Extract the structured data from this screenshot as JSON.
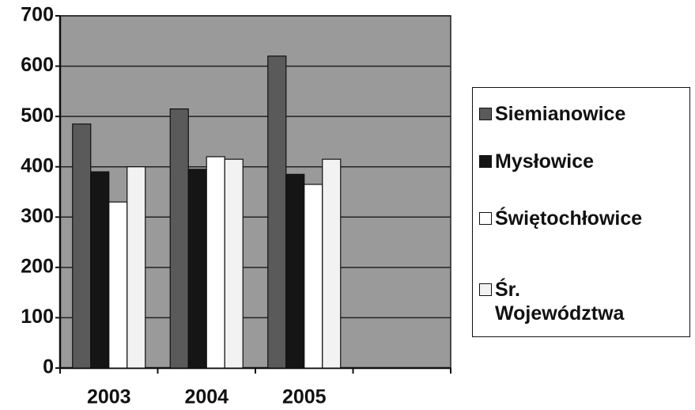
{
  "chart_data": {
    "type": "bar",
    "categories": [
      "2003",
      "2004",
      "2005",
      null
    ],
    "series": [
      {
        "name": "Siemianowice",
        "color": "#5a5a5a",
        "values": [
          485,
          515,
          620,
          null
        ]
      },
      {
        "name": "Mysłowice",
        "color": "#151515",
        "values": [
          390,
          395,
          385,
          null
        ]
      },
      {
        "name": "Świętochłowice",
        "color": "#ffffff",
        "values": [
          330,
          420,
          365,
          null
        ]
      },
      {
        "name": "Śr. Województwa",
        "color": "#f2f2f2",
        "values": [
          400,
          415,
          415,
          null
        ]
      }
    ],
    "ylim": [
      0,
      700
    ],
    "yticks": [
      0,
      100,
      200,
      300,
      400,
      500,
      600,
      700
    ],
    "grid": true,
    "legend": "right",
    "background": "#9a9a9a"
  }
}
